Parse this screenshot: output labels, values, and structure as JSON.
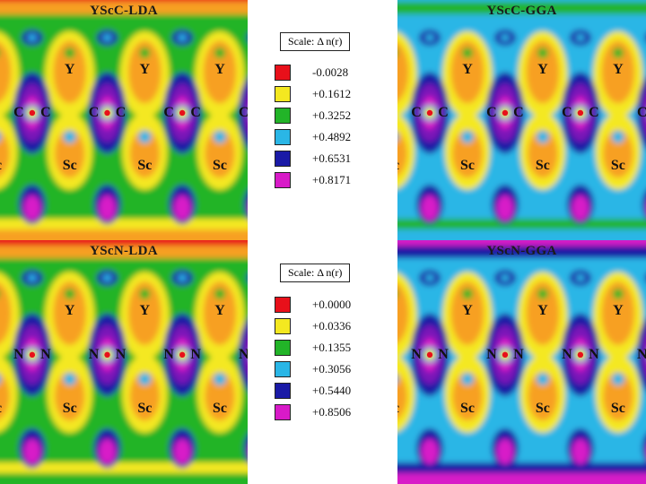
{
  "panels": [
    {
      "id": "ysc-c-lda",
      "title": "YScC-LDA",
      "atom_top": "Y",
      "atom_center": "C",
      "atom_bottom": "Sc"
    },
    {
      "id": "ysc-c-gga",
      "title": "YScC-GGA",
      "atom_top": "Y",
      "atom_center": "C",
      "atom_bottom": "Sc"
    },
    {
      "id": "ysc-n-lda",
      "title": "YScN-LDA",
      "atom_top": "Y",
      "atom_center": "N",
      "atom_bottom": "Sc"
    },
    {
      "id": "ysc-n-gga",
      "title": "YScN-GGA",
      "atom_top": "Y",
      "atom_center": "N",
      "atom_bottom": "Sc"
    }
  ],
  "legends": [
    {
      "label": "Scale:  Δ n(r)",
      "entries": [
        {
          "value": "-0.0028",
          "color": "#e8101a"
        },
        {
          "value": "+0.1612",
          "color": "#f4e820"
        },
        {
          "value": "+0.3252",
          "color": "#22b428"
        },
        {
          "value": "+0.4892",
          "color": "#2ab6e6"
        },
        {
          "value": "+0.6531",
          "color": "#1a1aa6"
        },
        {
          "value": "+0.8171",
          "color": "#d81ac8"
        }
      ]
    },
    {
      "label": "Scale:  Δ n(r)",
      "entries": [
        {
          "value": "+0.0000",
          "color": "#e8101a"
        },
        {
          "value": "+0.0336",
          "color": "#f4e820"
        },
        {
          "value": "+0.1355",
          "color": "#22b428"
        },
        {
          "value": "+0.3056",
          "color": "#2ab6e6"
        },
        {
          "value": "+0.5440",
          "color": "#1a1aa6"
        },
        {
          "value": "+0.8506",
          "color": "#d81ac8"
        }
      ]
    }
  ],
  "colors": {
    "red": "#e8101a",
    "orange": "#f7a024",
    "yellow": "#f4e820",
    "green": "#22b428",
    "cyan": "#2ab6e6",
    "blue": "#1a1aa6",
    "magenta": "#d81ac8",
    "purple": "#7a18b8"
  }
}
